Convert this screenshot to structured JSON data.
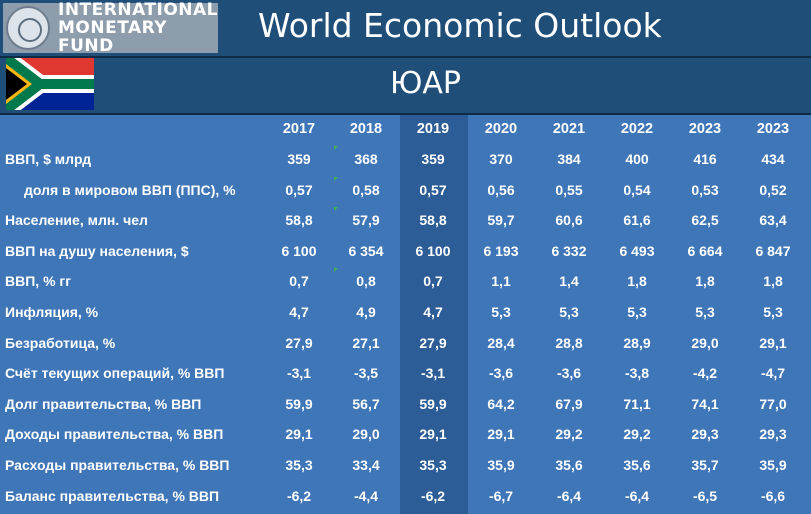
{
  "header": {
    "logo_line1": "INTERNATIONAL",
    "logo_line2": "MONETARY FUND",
    "title": "World Economic Outlook"
  },
  "country": {
    "name": "ЮАР",
    "flag_icon": "south-africa-flag-icon"
  },
  "colors": {
    "background": "#1f4e79",
    "table": "#3f76b8",
    "highlight_column": "#2c5d97",
    "text": "#ffffff"
  },
  "table": {
    "years": [
      "2017",
      "2018",
      "2019",
      "2020",
      "2021",
      "2022",
      "2023",
      "2023"
    ],
    "rows": [
      {
        "label": "ВВП, $ млрд",
        "values": [
          "359",
          "368",
          "359",
          "370",
          "384",
          "400",
          "416",
          "434"
        ]
      },
      {
        "label": "доля в мировом ВВП (ППС), %",
        "values": [
          "0,57",
          "0,58",
          "0,57",
          "0,56",
          "0,55",
          "0,54",
          "0,53",
          "0,52"
        ]
      },
      {
        "label": "Население, млн. чел",
        "values": [
          "58,8",
          "57,9",
          "58,8",
          "59,7",
          "60,6",
          "61,6",
          "62,5",
          "63,4"
        ]
      },
      {
        "label": "ВВП на душу населения, $",
        "values": [
          "6 100",
          "6 354",
          "6 100",
          "6 193",
          "6 332",
          "6 493",
          "6 664",
          "6 847"
        ]
      },
      {
        "label": "ВВП, % гг",
        "values": [
          "0,7",
          "0,8",
          "0,7",
          "1,1",
          "1,4",
          "1,8",
          "1,8",
          "1,8"
        ]
      },
      {
        "label": "Инфляция, %",
        "values": [
          "4,7",
          "4,9",
          "4,7",
          "5,3",
          "5,3",
          "5,3",
          "5,3",
          "5,3"
        ]
      },
      {
        "label": "Безработица, %",
        "values": [
          "27,9",
          "27,1",
          "27,9",
          "28,4",
          "28,8",
          "28,9",
          "29,0",
          "29,1"
        ]
      },
      {
        "label": "Счёт текущих операций, % ВВП",
        "values": [
          "-3,1",
          "-3,5",
          "-3,1",
          "-3,6",
          "-3,6",
          "-3,8",
          "-4,2",
          "-4,7"
        ]
      },
      {
        "label": "Долг правительства, % ВВП",
        "values": [
          "59,9",
          "56,7",
          "59,9",
          "64,2",
          "67,9",
          "71,1",
          "74,1",
          "77,0"
        ]
      },
      {
        "label": "Доходы правительства, % ВВП",
        "values": [
          "29,1",
          "29,0",
          "29,1",
          "29,1",
          "29,2",
          "29,2",
          "29,3",
          "29,3"
        ]
      },
      {
        "label": "Расходы правительства, % ВВП",
        "values": [
          "35,3",
          "33,4",
          "35,3",
          "35,9",
          "35,6",
          "35,6",
          "35,7",
          "35,9"
        ]
      },
      {
        "label": "Баланс правительства, % ВВП",
        "values": [
          "-6,2",
          "-4,4",
          "-6,2",
          "-6,7",
          "-6,4",
          "-6,4",
          "-6,5",
          "-6,6"
        ]
      }
    ]
  }
}
